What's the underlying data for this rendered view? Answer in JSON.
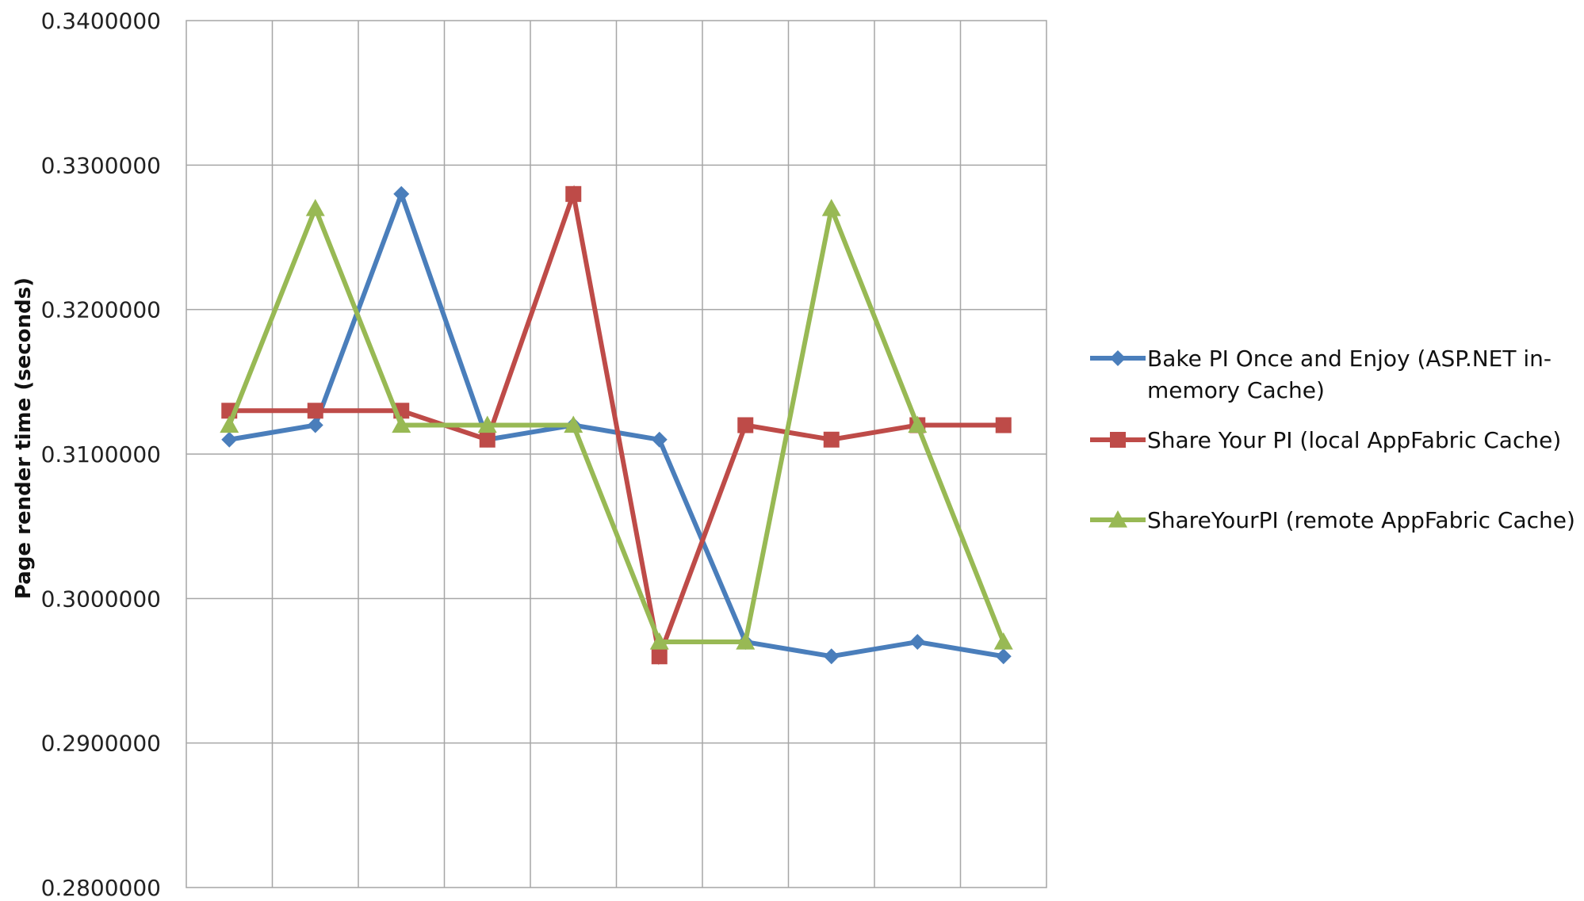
{
  "chart_data": {
    "type": "line",
    "title": "",
    "xlabel": "",
    "ylabel": "Page render time (seconds)",
    "ylim": [
      0.28,
      0.34
    ],
    "ytick_labels": [
      "0.3400000",
      "0.3300000",
      "0.3200000",
      "0.3100000",
      "0.3000000",
      "0.2900000",
      "0.2800000"
    ],
    "x": [
      1,
      2,
      3,
      4,
      5,
      6,
      7,
      8,
      9,
      10
    ],
    "grid": true,
    "legend_position": "right",
    "series": [
      {
        "name": "Bake PI Once and Enjoy (ASP.NET in-memory Cache)",
        "legend_lines": [
          "Bake PI Once and Enjoy (ASP.NET in-",
          "memory Cache)"
        ],
        "color": "#4a7ebb",
        "marker": "diamond",
        "values": [
          0.311,
          0.312,
          0.328,
          0.311,
          0.312,
          0.311,
          0.297,
          0.296,
          0.297,
          0.296
        ]
      },
      {
        "name": "Share Your PI (local AppFabric Cache)",
        "legend_lines": [
          "Share Your PI (local AppFabric Cache)"
        ],
        "color": "#be4b48",
        "marker": "square",
        "values": [
          0.313,
          0.313,
          0.313,
          0.311,
          0.328,
          0.296,
          0.312,
          0.311,
          0.312,
          0.312
        ]
      },
      {
        "name": "ShareYourPI (remote AppFabric Cache)",
        "legend_lines": [
          "ShareYourPI (remote AppFabric Cache)"
        ],
        "color": "#98b954",
        "marker": "triangle",
        "values": [
          0.312,
          0.327,
          0.312,
          0.312,
          0.312,
          0.297,
          0.297,
          0.327,
          0.312,
          0.297
        ]
      }
    ]
  }
}
